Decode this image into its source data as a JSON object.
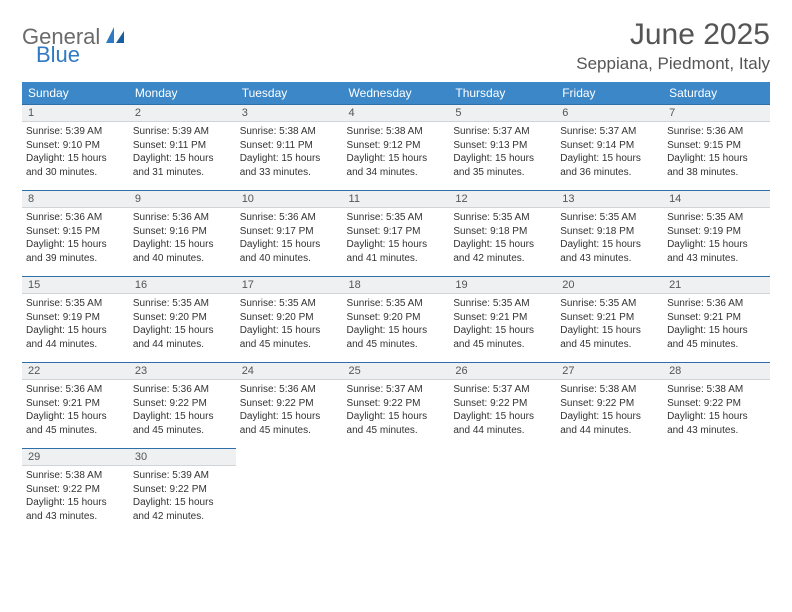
{
  "brand": {
    "part1": "General",
    "part2": "Blue"
  },
  "title": "June 2025",
  "location": "Seppiana, Piedmont, Italy",
  "colors": {
    "header_bg": "#3b87c8",
    "header_text": "#ffffff",
    "daynum_bg": "#eef0f1",
    "daynum_border_top": "#2f6fa8",
    "text": "#333333",
    "title_color": "#555555",
    "brand_gray": "#6b6b6b",
    "brand_blue": "#2f7ac2"
  },
  "weekdays": [
    "Sunday",
    "Monday",
    "Tuesday",
    "Wednesday",
    "Thursday",
    "Friday",
    "Saturday"
  ],
  "days": [
    {
      "n": 1,
      "sunrise": "5:39 AM",
      "sunset": "9:10 PM",
      "daylight": "15 hours and 30 minutes."
    },
    {
      "n": 2,
      "sunrise": "5:39 AM",
      "sunset": "9:11 PM",
      "daylight": "15 hours and 31 minutes."
    },
    {
      "n": 3,
      "sunrise": "5:38 AM",
      "sunset": "9:11 PM",
      "daylight": "15 hours and 33 minutes."
    },
    {
      "n": 4,
      "sunrise": "5:38 AM",
      "sunset": "9:12 PM",
      "daylight": "15 hours and 34 minutes."
    },
    {
      "n": 5,
      "sunrise": "5:37 AM",
      "sunset": "9:13 PM",
      "daylight": "15 hours and 35 minutes."
    },
    {
      "n": 6,
      "sunrise": "5:37 AM",
      "sunset": "9:14 PM",
      "daylight": "15 hours and 36 minutes."
    },
    {
      "n": 7,
      "sunrise": "5:36 AM",
      "sunset": "9:15 PM",
      "daylight": "15 hours and 38 minutes."
    },
    {
      "n": 8,
      "sunrise": "5:36 AM",
      "sunset": "9:15 PM",
      "daylight": "15 hours and 39 minutes."
    },
    {
      "n": 9,
      "sunrise": "5:36 AM",
      "sunset": "9:16 PM",
      "daylight": "15 hours and 40 minutes."
    },
    {
      "n": 10,
      "sunrise": "5:36 AM",
      "sunset": "9:17 PM",
      "daylight": "15 hours and 40 minutes."
    },
    {
      "n": 11,
      "sunrise": "5:35 AM",
      "sunset": "9:17 PM",
      "daylight": "15 hours and 41 minutes."
    },
    {
      "n": 12,
      "sunrise": "5:35 AM",
      "sunset": "9:18 PM",
      "daylight": "15 hours and 42 minutes."
    },
    {
      "n": 13,
      "sunrise": "5:35 AM",
      "sunset": "9:18 PM",
      "daylight": "15 hours and 43 minutes."
    },
    {
      "n": 14,
      "sunrise": "5:35 AM",
      "sunset": "9:19 PM",
      "daylight": "15 hours and 43 minutes."
    },
    {
      "n": 15,
      "sunrise": "5:35 AM",
      "sunset": "9:19 PM",
      "daylight": "15 hours and 44 minutes."
    },
    {
      "n": 16,
      "sunrise": "5:35 AM",
      "sunset": "9:20 PM",
      "daylight": "15 hours and 44 minutes."
    },
    {
      "n": 17,
      "sunrise": "5:35 AM",
      "sunset": "9:20 PM",
      "daylight": "15 hours and 45 minutes."
    },
    {
      "n": 18,
      "sunrise": "5:35 AM",
      "sunset": "9:20 PM",
      "daylight": "15 hours and 45 minutes."
    },
    {
      "n": 19,
      "sunrise": "5:35 AM",
      "sunset": "9:21 PM",
      "daylight": "15 hours and 45 minutes."
    },
    {
      "n": 20,
      "sunrise": "5:35 AM",
      "sunset": "9:21 PM",
      "daylight": "15 hours and 45 minutes."
    },
    {
      "n": 21,
      "sunrise": "5:36 AM",
      "sunset": "9:21 PM",
      "daylight": "15 hours and 45 minutes."
    },
    {
      "n": 22,
      "sunrise": "5:36 AM",
      "sunset": "9:21 PM",
      "daylight": "15 hours and 45 minutes."
    },
    {
      "n": 23,
      "sunrise": "5:36 AM",
      "sunset": "9:22 PM",
      "daylight": "15 hours and 45 minutes."
    },
    {
      "n": 24,
      "sunrise": "5:36 AM",
      "sunset": "9:22 PM",
      "daylight": "15 hours and 45 minutes."
    },
    {
      "n": 25,
      "sunrise": "5:37 AM",
      "sunset": "9:22 PM",
      "daylight": "15 hours and 45 minutes."
    },
    {
      "n": 26,
      "sunrise": "5:37 AM",
      "sunset": "9:22 PM",
      "daylight": "15 hours and 44 minutes."
    },
    {
      "n": 27,
      "sunrise": "5:38 AM",
      "sunset": "9:22 PM",
      "daylight": "15 hours and 44 minutes."
    },
    {
      "n": 28,
      "sunrise": "5:38 AM",
      "sunset": "9:22 PM",
      "daylight": "15 hours and 43 minutes."
    },
    {
      "n": 29,
      "sunrise": "5:38 AM",
      "sunset": "9:22 PM",
      "daylight": "15 hours and 43 minutes."
    },
    {
      "n": 30,
      "sunrise": "5:39 AM",
      "sunset": "9:22 PM",
      "daylight": "15 hours and 42 minutes."
    }
  ],
  "labels": {
    "sunrise": "Sunrise: ",
    "sunset": "Sunset: ",
    "daylight": "Daylight: "
  },
  "layout": {
    "first_weekday_index": 0,
    "total_cells": 35
  }
}
